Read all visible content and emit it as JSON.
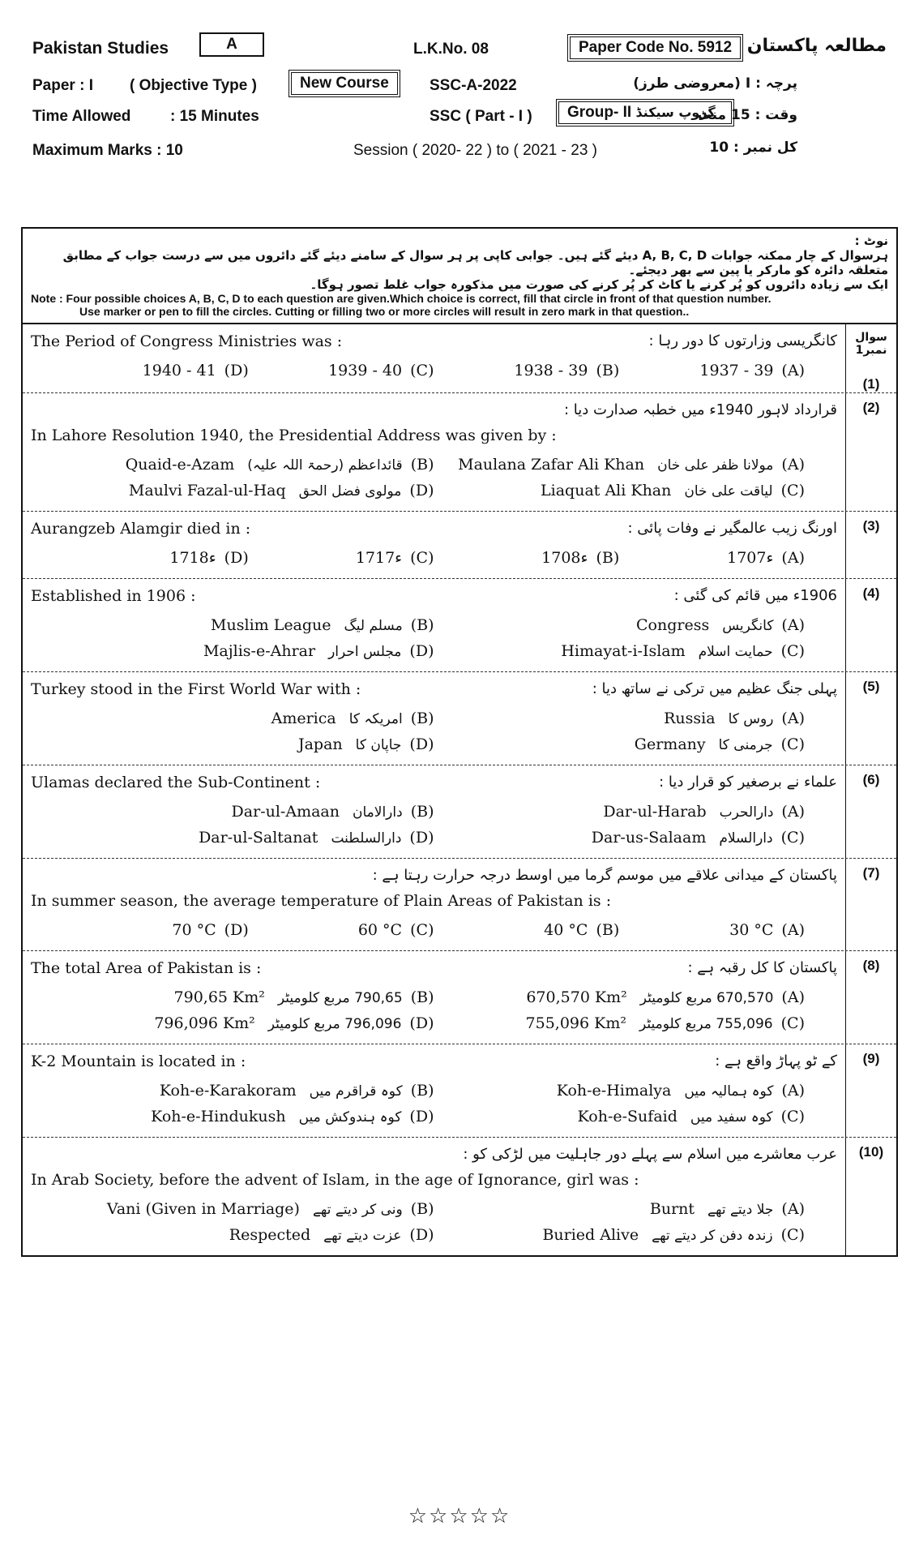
{
  "header": {
    "subject": "Pakistan Studies",
    "version": "A",
    "lk_no": "L.K.No. 08",
    "paper_code": "Paper Code No. 5912",
    "urdu_title": "مطالعہ پاکستان",
    "paper": "Paper : I",
    "paper_type": "( Objective Type )",
    "course": "New Course",
    "exam": "SSC-A-2022",
    "urdu_paper": "پرچہ : I (معروضی طرز)",
    "time_label": "Time Allowed",
    "time_value": ": 15 Minutes",
    "part": "SSC ( Part - I )",
    "group": "Group- II",
    "urdu_group": "گروپ سیکنڈ",
    "urdu_time": "وقت : 15 منٹ",
    "marks": "Maximum Marks : 10",
    "session": "Session ( 2020- 22 ) to ( 2021 - 23 )",
    "urdu_marks": "کل نمبر : 10"
  },
  "note": {
    "urdu_label": "نوٹ :",
    "urdu_lines": [
      "ہرسوال کے چار ممکنہ جوابات A, B, C, D دیئے گئے ہیں۔ جوابی کاپی پر ہر سوال کے سامنے دیئے گئے دائروں میں سے درست جواب کے مطابق متعلقہ دائرہ کو مارکر یا پین سے بھر دیجئے۔",
      "ایک سے زیادہ دائروں کو پُر کرنے یا کاٹ کر پُر کرنے کی صورت میں مذکورہ جواب غلط تصور ہوگا۔"
    ],
    "english_lines": [
      "Note : Four possible choices A, B, C, D to each question are given.Which choice is correct, fill that circle in front of that question number.",
      "Use marker or pen to fill the circles. Cutting or filling two or more circles will result in zero mark in that question.."
    ]
  },
  "question_header": "سوال نمبر1",
  "questions": [
    {
      "number": "(1)",
      "english": "The Period of Congress Ministries was :",
      "urdu": "کانگریسی وزارتوں کا دور رہا :",
      "options": [
        {
          "letter": "(A)",
          "text": "1937 - 39"
        },
        {
          "letter": "(B)",
          "text": "1938 - 39"
        },
        {
          "letter": "(C)",
          "text": "1939 - 40"
        },
        {
          "letter": "(D)",
          "text": "1940 - 41"
        }
      ]
    },
    {
      "number": "(2)",
      "english": "In Lahore Resolution 1940, the Presidential Address was given by :",
      "urdu": "قرارداد لاہور 1940ء میں خطبہ صدارت دیا :",
      "options": [
        {
          "letter": "(A)",
          "urdu": "مولانا ظفر علی خان",
          "text": "Maulana Zafar Ali Khan"
        },
        {
          "letter": "(B)",
          "urdu": "قائداعظم (رحمۃ اللہ علیہ)",
          "text": "Quaid-e-Azam"
        },
        {
          "letter": "(C)",
          "urdu": "لیاقت علی خان",
          "text": "Liaquat Ali Khan"
        },
        {
          "letter": "(D)",
          "urdu": "مولوی فضل الحق",
          "text": "Maulvi Fazal-ul-Haq"
        }
      ]
    },
    {
      "number": "(3)",
      "english": "Aurangzeb Alamgir died in :",
      "urdu": "اورنگ زیب عالمگیر نے وفات پائی :",
      "options": [
        {
          "letter": "(A)",
          "text": "1707ء"
        },
        {
          "letter": "(B)",
          "text": "1708ء"
        },
        {
          "letter": "(C)",
          "text": "1717ء"
        },
        {
          "letter": "(D)",
          "text": "1718ء"
        }
      ]
    },
    {
      "number": "(4)",
      "english": "Established in 1906 :",
      "urdu": "1906ء میں قائم کی گئی :",
      "options": [
        {
          "letter": "(A)",
          "urdu": "کانگریس",
          "text": "Congress"
        },
        {
          "letter": "(B)",
          "urdu": "مسلم لیگ",
          "text": "Muslim League"
        },
        {
          "letter": "(C)",
          "urdu": "حمایت اسلام",
          "text": "Himayat-i-Islam"
        },
        {
          "letter": "(D)",
          "urdu": "مجلس احرار",
          "text": "Majlis-e-Ahrar"
        }
      ]
    },
    {
      "number": "(5)",
      "english": "Turkey stood in the First World War with :",
      "urdu": "پہلی جنگ عظیم میں ترکی نے ساتھ دیا :",
      "options": [
        {
          "letter": "(A)",
          "urdu": "روس کا",
          "text": "Russia"
        },
        {
          "letter": "(B)",
          "urdu": "امریکہ کا",
          "text": "America"
        },
        {
          "letter": "(C)",
          "urdu": "جرمنی کا",
          "text": "Germany"
        },
        {
          "letter": "(D)",
          "urdu": "جاپان کا",
          "text": "Japan"
        }
      ]
    },
    {
      "number": "(6)",
      "english": "Ulamas declared the Sub-Continent :",
      "urdu": "علماء نے برصغیر کو قرار دیا :",
      "options": [
        {
          "letter": "(A)",
          "urdu": "دارالحرب",
          "text": "Dar-ul-Harab"
        },
        {
          "letter": "(B)",
          "urdu": "دارالامان",
          "text": "Dar-ul-Amaan"
        },
        {
          "letter": "(C)",
          "urdu": "دارالسلام",
          "text": "Dar-us-Salaam"
        },
        {
          "letter": "(D)",
          "urdu": "دارالسلطنت",
          "text": "Dar-ul-Saltanat"
        }
      ]
    },
    {
      "number": "(7)",
      "english": "In summer season, the average temperature of Plain Areas of Pakistan is :",
      "urdu": "پاکستان کے میدانی علاقے میں موسم گرما میں اوسط درجہ حرارت رہتا ہے :",
      "options": [
        {
          "letter": "(A)",
          "text": "30 °C"
        },
        {
          "letter": "(B)",
          "text": "40 °C"
        },
        {
          "letter": "(C)",
          "text": "60 °C"
        },
        {
          "letter": "(D)",
          "text": "70 °C"
        }
      ]
    },
    {
      "number": "(8)",
      "english": "The total Area of Pakistan is :",
      "urdu": "پاکستان کا کل رقبہ ہے :",
      "options": [
        {
          "letter": "(A)",
          "urdu": "670,570 مربع کلومیٹر",
          "text": "670,570 Km²"
        },
        {
          "letter": "(B)",
          "urdu": "790,65 مربع کلومیٹر",
          "text": "790,65 Km²"
        },
        {
          "letter": "(C)",
          "urdu": "755,096 مربع کلومیٹر",
          "text": "755,096 Km²"
        },
        {
          "letter": "(D)",
          "urdu": "796,096 مربع کلومیٹر",
          "text": "796,096 Km²"
        }
      ]
    },
    {
      "number": "(9)",
      "english": "K-2 Mountain is located in :",
      "urdu": "کے ٹو پہاڑ واقع ہے :",
      "options": [
        {
          "letter": "(A)",
          "urdu": "کوہ ہمالیہ میں",
          "text": "Koh-e-Himalya"
        },
        {
          "letter": "(B)",
          "urdu": "کوہ قراقرم میں",
          "text": "Koh-e-Karakoram"
        },
        {
          "letter": "(C)",
          "urdu": "کوہ سفید میں",
          "text": "Koh-e-Sufaid"
        },
        {
          "letter": "(D)",
          "urdu": "کوہ ہندوکش میں",
          "text": "Koh-e-Hindukush"
        }
      ]
    },
    {
      "number": "(10)",
      "english": "In Arab Society, before the advent of Islam, in the age of Ignorance, girl was :",
      "urdu": "عرب معاشرے میں اسلام سے پہلے دور جاہلیت میں لڑکی کو :",
      "options": [
        {
          "letter": "(A)",
          "urdu": "جلا دیتے تھے",
          "text": "Burnt"
        },
        {
          "letter": "(B)",
          "urdu": "ونی کر دیتے تھے",
          "text": "Vani (Given in Marriage)"
        },
        {
          "letter": "(C)",
          "urdu": "زندہ دفن کر دیتے تھے",
          "text": "Buried Alive"
        },
        {
          "letter": "(D)",
          "urdu": "عزت دیتے تھے",
          "text": "Respected"
        }
      ]
    }
  ],
  "footer": "☆☆☆☆☆"
}
